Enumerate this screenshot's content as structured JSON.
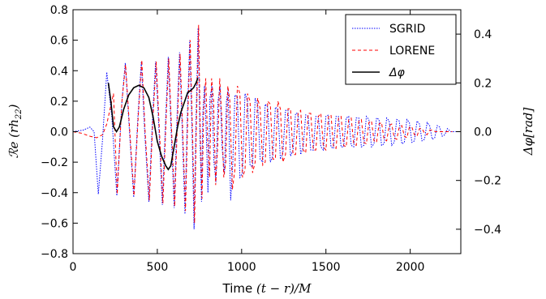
{
  "chart_data": {
    "type": "line",
    "xlabel": "Time (t − r)/M",
    "ylabel": "ℛe (rh22)",
    "y2label": "Δφ[rad]",
    "xlim": [
      0,
      2300
    ],
    "ylim": [
      -0.8,
      0.8
    ],
    "y2lim": [
      -0.5,
      0.5
    ],
    "xticks": [
      "0",
      "500",
      "1000",
      "1500",
      "2000"
    ],
    "yticks": [
      "−0.8",
      "−0.6",
      "−0.4",
      "−0.2",
      "0.0",
      "0.2",
      "0.4",
      "0.6",
      "0.8"
    ],
    "y2ticks": [
      "−0.4",
      "−0.2",
      "0.0",
      "0.2",
      "0.4"
    ],
    "legend_position": "top-right",
    "grid": false,
    "series": [
      {
        "name": "SGRID",
        "axis": "left",
        "color": "#0000ff",
        "style": "dotted",
        "points": [
          [
            0,
            0.0
          ],
          [
            60,
            0.01
          ],
          [
            100,
            0.03
          ],
          [
            125,
            0.0
          ],
          [
            150,
            -0.41
          ],
          [
            175,
            -0.05
          ],
          [
            200,
            0.39
          ],
          [
            230,
            0.1
          ],
          [
            260,
            -0.42
          ],
          [
            290,
            0.2
          ],
          [
            310,
            0.45
          ],
          [
            335,
            0.0
          ],
          [
            360,
            -0.43
          ],
          [
            385,
            0.1
          ],
          [
            405,
            0.46
          ],
          [
            425,
            0.0
          ],
          [
            450,
            -0.46
          ],
          [
            472,
            0.1
          ],
          [
            490,
            0.46
          ],
          [
            510,
            0.0
          ],
          [
            530,
            -0.48
          ],
          [
            550,
            0.1
          ],
          [
            565,
            0.49
          ],
          [
            582,
            0.0
          ],
          [
            600,
            -0.5
          ],
          [
            617,
            0.1
          ],
          [
            632,
            0.52
          ],
          [
            648,
            0.0
          ],
          [
            664,
            -0.54
          ],
          [
            678,
            0.1
          ],
          [
            692,
            0.6
          ],
          [
            706,
            0.0
          ],
          [
            718,
            -0.64
          ],
          [
            730,
            0.1
          ],
          [
            742,
            0.68
          ],
          [
            752,
            0.0
          ],
          [
            762,
            -0.46
          ],
          [
            770,
            0.12
          ],
          [
            780,
            0.3
          ],
          [
            790,
            0.0
          ],
          [
            800,
            -0.4
          ],
          [
            812,
            0.22
          ],
          [
            824,
            0.3
          ],
          [
            836,
            -0.2
          ],
          [
            848,
            -0.33
          ],
          [
            860,
            0.2
          ],
          [
            872,
            0.3
          ],
          [
            884,
            -0.1
          ],
          [
            898,
            -0.28
          ],
          [
            910,
            0.2
          ],
          [
            920,
            0.28
          ],
          [
            935,
            -0.45
          ],
          [
            948,
            -0.2
          ],
          [
            960,
            0.24
          ],
          [
            975,
            0.23
          ],
          [
            990,
            -0.3
          ],
          [
            1005,
            -0.27
          ],
          [
            1020,
            0.25
          ],
          [
            1035,
            0.2
          ],
          [
            1050,
            -0.22
          ],
          [
            1065,
            -0.23
          ],
          [
            1080,
            0.22
          ],
          [
            1095,
            0.18
          ],
          [
            1110,
            -0.18
          ],
          [
            1125,
            -0.2
          ],
          [
            1140,
            0.18
          ],
          [
            1155,
            0.16
          ],
          [
            1170,
            -0.2
          ],
          [
            1185,
            -0.16
          ],
          [
            1200,
            0.16
          ],
          [
            1215,
            0.15
          ],
          [
            1230,
            -0.18
          ],
          [
            1245,
            -0.14
          ],
          [
            1260,
            0.14
          ],
          [
            1275,
            0.14
          ],
          [
            1290,
            -0.16
          ],
          [
            1305,
            -0.12
          ],
          [
            1320,
            0.12
          ],
          [
            1335,
            0.12
          ],
          [
            1350,
            -0.15
          ],
          [
            1365,
            -0.1
          ],
          [
            1380,
            0.11
          ],
          [
            1395,
            0.1
          ],
          [
            1410,
            -0.12
          ],
          [
            1425,
            -0.12
          ],
          [
            1440,
            0.1
          ],
          [
            1455,
            0.1
          ],
          [
            1470,
            -0.1
          ],
          [
            1485,
            -0.12
          ],
          [
            1500,
            0.1
          ],
          [
            1515,
            0.11
          ],
          [
            1530,
            -0.1
          ],
          [
            1545,
            -0.11
          ],
          [
            1560,
            0.1
          ],
          [
            1575,
            0.1
          ],
          [
            1590,
            -0.1
          ],
          [
            1605,
            -0.1
          ],
          [
            1620,
            0.09
          ],
          [
            1635,
            0.1
          ],
          [
            1650,
            -0.09
          ],
          [
            1665,
            -0.1
          ],
          [
            1680,
            0.09
          ],
          [
            1695,
            0.09
          ],
          [
            1710,
            -0.1
          ],
          [
            1725,
            -0.09
          ],
          [
            1740,
            0.1
          ],
          [
            1755,
            0.08
          ],
          [
            1770,
            -0.1
          ],
          [
            1785,
            -0.08
          ],
          [
            1800,
            0.09
          ],
          [
            1815,
            0.08
          ],
          [
            1830,
            -0.09
          ],
          [
            1845,
            -0.08
          ],
          [
            1860,
            0.09
          ],
          [
            1875,
            0.07
          ],
          [
            1890,
            -0.09
          ],
          [
            1905,
            -0.07
          ],
          [
            1920,
            0.08
          ],
          [
            1935,
            0.07
          ],
          [
            1950,
            -0.08
          ],
          [
            1965,
            -0.07
          ],
          [
            1980,
            0.08
          ],
          [
            1995,
            0.06
          ],
          [
            2010,
            -0.07
          ],
          [
            2025,
            -0.06
          ],
          [
            2040,
            0.07
          ],
          [
            2055,
            0.05
          ],
          [
            2070,
            -0.06
          ],
          [
            2085,
            -0.05
          ],
          [
            2100,
            0.06
          ],
          [
            2115,
            0.04
          ],
          [
            2130,
            -0.05
          ],
          [
            2145,
            -0.04
          ],
          [
            2160,
            0.04
          ],
          [
            2175,
            0.03
          ],
          [
            2190,
            -0.03
          ],
          [
            2205,
            -0.02
          ],
          [
            2220,
            0.02
          ],
          [
            2240,
            0.0
          ],
          [
            2270,
            0.0
          ]
        ]
      },
      {
        "name": "LORENE",
        "axis": "left",
        "color": "#ff0000",
        "style": "dashed",
        "points": [
          [
            0,
            0.0
          ],
          [
            50,
            -0.01
          ],
          [
            100,
            -0.03
          ],
          [
            140,
            -0.04
          ],
          [
            175,
            -0.02
          ],
          [
            200,
            0.05
          ],
          [
            220,
            0.15
          ],
          [
            240,
            0.25
          ],
          [
            262,
            -0.41
          ],
          [
            290,
            0.2
          ],
          [
            312,
            0.44
          ],
          [
            337,
            0.0
          ],
          [
            362,
            -0.42
          ],
          [
            387,
            0.1
          ],
          [
            408,
            0.47
          ],
          [
            428,
            0.0
          ],
          [
            453,
            -0.45
          ],
          [
            475,
            0.1
          ],
          [
            493,
            0.46
          ],
          [
            513,
            0.0
          ],
          [
            533,
            -0.47
          ],
          [
            553,
            0.1
          ],
          [
            568,
            0.48
          ],
          [
            585,
            0.0
          ],
          [
            603,
            -0.49
          ],
          [
            620,
            0.1
          ],
          [
            635,
            0.51
          ],
          [
            651,
            0.0
          ],
          [
            667,
            -0.52
          ],
          [
            681,
            0.1
          ],
          [
            695,
            0.6
          ],
          [
            709,
            0.0
          ],
          [
            721,
            -0.6
          ],
          [
            733,
            0.1
          ],
          [
            745,
            0.7
          ],
          [
            755,
            0.0
          ],
          [
            765,
            -0.44
          ],
          [
            775,
            0.15
          ],
          [
            787,
            0.35
          ],
          [
            798,
            -0.05
          ],
          [
            810,
            -0.3
          ],
          [
            822,
            0.35
          ],
          [
            834,
            0.2
          ],
          [
            846,
            -0.35
          ],
          [
            858,
            -0.1
          ],
          [
            870,
            0.35
          ],
          [
            882,
            0.1
          ],
          [
            894,
            -0.3
          ],
          [
            906,
            -0.2
          ],
          [
            918,
            0.3
          ],
          [
            930,
            0.2
          ],
          [
            945,
            -0.38
          ],
          [
            960,
            -0.25
          ],
          [
            975,
            0.3
          ],
          [
            990,
            0.25
          ],
          [
            1005,
            -0.3
          ],
          [
            1020,
            -0.25
          ],
          [
            1035,
            0.25
          ],
          [
            1050,
            0.2
          ],
          [
            1065,
            -0.27
          ],
          [
            1080,
            -0.2
          ],
          [
            1095,
            0.22
          ],
          [
            1110,
            0.15
          ],
          [
            1125,
            -0.22
          ],
          [
            1140,
            -0.2
          ],
          [
            1155,
            0.2
          ],
          [
            1170,
            0.18
          ],
          [
            1185,
            -0.18
          ],
          [
            1200,
            -0.18
          ],
          [
            1215,
            0.2
          ],
          [
            1230,
            0.15
          ],
          [
            1245,
            -0.2
          ],
          [
            1260,
            -0.15
          ],
          [
            1275,
            0.15
          ],
          [
            1290,
            0.15
          ],
          [
            1305,
            -0.15
          ],
          [
            1320,
            -0.15
          ],
          [
            1335,
            0.12
          ],
          [
            1350,
            0.14
          ],
          [
            1365,
            -0.12
          ],
          [
            1380,
            -0.14
          ],
          [
            1395,
            0.12
          ],
          [
            1410,
            0.12
          ],
          [
            1425,
            -0.12
          ],
          [
            1440,
            -0.12
          ],
          [
            1455,
            0.1
          ],
          [
            1470,
            0.12
          ],
          [
            1485,
            -0.1
          ],
          [
            1500,
            -0.12
          ],
          [
            1515,
            0.1
          ],
          [
            1530,
            0.11
          ],
          [
            1545,
            -0.1
          ],
          [
            1560,
            -0.11
          ],
          [
            1575,
            0.09
          ],
          [
            1590,
            0.1
          ],
          [
            1605,
            -0.09
          ],
          [
            1620,
            -0.1
          ],
          [
            1635,
            0.08
          ],
          [
            1650,
            0.09
          ],
          [
            1665,
            -0.08
          ],
          [
            1680,
            -0.09
          ],
          [
            1695,
            0.07
          ],
          [
            1710,
            0.08
          ],
          [
            1725,
            -0.07
          ],
          [
            1740,
            -0.08
          ],
          [
            1755,
            0.06
          ],
          [
            1770,
            0.07
          ],
          [
            1785,
            -0.06
          ],
          [
            1800,
            -0.07
          ],
          [
            1815,
            0.05
          ],
          [
            1830,
            0.06
          ],
          [
            1845,
            -0.05
          ],
          [
            1860,
            -0.06
          ],
          [
            1875,
            0.04
          ],
          [
            1890,
            0.05
          ],
          [
            1905,
            -0.04
          ],
          [
            1920,
            -0.05
          ],
          [
            1935,
            0.03
          ],
          [
            1950,
            0.04
          ],
          [
            1965,
            -0.03
          ],
          [
            1980,
            -0.04
          ],
          [
            1995,
            0.03
          ],
          [
            2010,
            0.03
          ],
          [
            2025,
            -0.02
          ],
          [
            2040,
            -0.03
          ],
          [
            2055,
            0.02
          ],
          [
            2070,
            0.02
          ],
          [
            2085,
            -0.01
          ],
          [
            2100,
            -0.02
          ],
          [
            2115,
            0.01
          ],
          [
            2130,
            0.01
          ],
          [
            2150,
            0.0
          ],
          [
            2200,
            0.0
          ],
          [
            2250,
            0.0
          ]
        ]
      },
      {
        "name": "Δφ",
        "axis": "right",
        "color": "#000000",
        "style": "solid",
        "points": [
          [
            210,
            0.2
          ],
          [
            225,
            0.12
          ],
          [
            240,
            0.02
          ],
          [
            258,
            0.0
          ],
          [
            275,
            0.02
          ],
          [
            300,
            0.09
          ],
          [
            330,
            0.15
          ],
          [
            360,
            0.18
          ],
          [
            390,
            0.19
          ],
          [
            420,
            0.18
          ],
          [
            450,
            0.14
          ],
          [
            475,
            0.06
          ],
          [
            500,
            -0.04
          ],
          [
            525,
            -0.1
          ],
          [
            550,
            -0.14
          ],
          [
            565,
            -0.155
          ],
          [
            580,
            -0.14
          ],
          [
            600,
            -0.06
          ],
          [
            620,
            0.02
          ],
          [
            640,
            0.08
          ],
          [
            660,
            0.12
          ],
          [
            680,
            0.16
          ],
          [
            700,
            0.17
          ],
          [
            715,
            0.18
          ],
          [
            730,
            0.2
          ],
          [
            740,
            0.22
          ]
        ]
      }
    ]
  }
}
